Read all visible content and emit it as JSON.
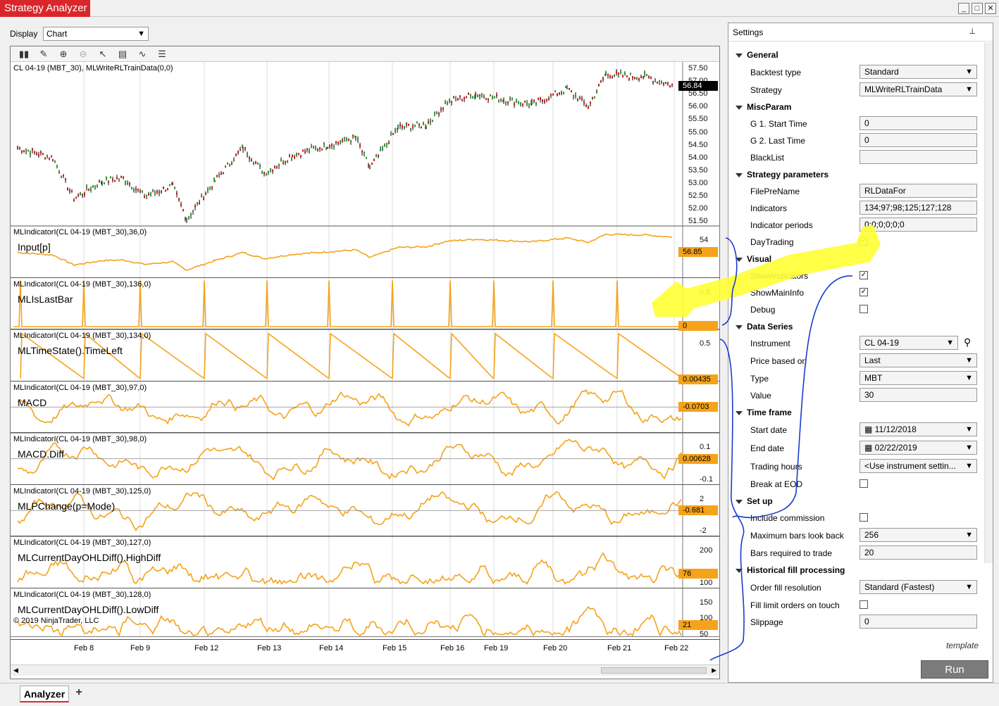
{
  "window": {
    "title": "Strategy Analyzer",
    "minimize": "_",
    "maximize": "□",
    "close": "✕"
  },
  "display": {
    "label": "Display",
    "value": "Chart"
  },
  "chart": {
    "main_title": "CL 04-19 (MBT_30), MLWriteRLTrainData(0,0)",
    "price_ticks": [
      "57.50",
      "57.00",
      "56.50",
      "56.00",
      "55.50",
      "55.00",
      "54.50",
      "54.00",
      "53.50",
      "53.00",
      "52.50",
      "52.00",
      "51.50"
    ],
    "last_price": "56.84",
    "copyright": "© 2019 NinjaTrader, LLC",
    "x_ticks": [
      "Feb 8",
      "Feb 9",
      "Feb 12",
      "Feb 13",
      "Feb 14",
      "Feb 15",
      "Feb 16",
      "Feb 19",
      "Feb 20",
      "Feb 21",
      "Feb 22"
    ],
    "indicators": [
      {
        "title": "MLIndicatorI(CL 04-19 (MBT_30),36,0)",
        "label": "Input[p]",
        "ticks": [
          "54"
        ],
        "value": "56.85"
      },
      {
        "title": "MLIndicatorI(CL 04-19 (MBT_30),136,0)",
        "label": "MLIsLastBar",
        "ticks": [
          "0.5"
        ],
        "value": "0"
      },
      {
        "title": "MLIndicatorI(CL 04-19 (MBT_30),134,0)",
        "label": "MLTimeState().TimeLeft",
        "ticks": [
          "0.5"
        ],
        "value": "0.00435"
      },
      {
        "title": "MLIndicatorI(CL 04-19 (MBT_30),97,0)",
        "label": "MACD",
        "ticks": [],
        "value": "-0.0703"
      },
      {
        "title": "MLIndicatorI(CL 04-19 (MBT_30),98,0)",
        "label": "MACD.Diff",
        "ticks": [
          "0.1",
          "-0.1"
        ],
        "value": "0.00628"
      },
      {
        "title": "MLIndicatorI(CL 04-19 (MBT_30),125,0)",
        "label": "MLPChange(p=Mode)",
        "ticks": [
          "2",
          "-2"
        ],
        "value": "-0.681"
      },
      {
        "title": "MLIndicatorI(CL 04-19 (MBT_30),127,0)",
        "label": "MLCurrentDayOHLDiff().HighDiff",
        "ticks": [
          "200",
          "100"
        ],
        "value": "76"
      },
      {
        "title": "MLIndicatorI(CL 04-19 (MBT_30),128,0)",
        "label": "MLCurrentDayOHLDiff().LowDiff",
        "ticks": [
          "150",
          "100",
          "50"
        ],
        "value": "21"
      }
    ]
  },
  "settings": {
    "header": "Settings",
    "pin": "📌",
    "groups": {
      "general": "General",
      "miscparam": "MiscParam",
      "strategy_params": "Strategy parameters",
      "visual": "Visual",
      "data_series": "Data Series",
      "time_frame": "Time frame",
      "setup": "Set up",
      "hist_fill": "Historical fill processing"
    },
    "rows": {
      "backtest_type": {
        "label": "Backtest type",
        "value": "Standard"
      },
      "strategy": {
        "label": "Strategy",
        "value": "MLWriteRLTrainData"
      },
      "start_time": {
        "label": "G 1. Start Time",
        "value": "0"
      },
      "last_time": {
        "label": "G 2. Last Time",
        "value": "0"
      },
      "blacklist": {
        "label": "BlackList",
        "value": ""
      },
      "file_pre_name": {
        "label": "FilePreName",
        "value": "RLDataFor"
      },
      "indicators": {
        "label": "Indicators",
        "value": "134;97;98;125;127;128"
      },
      "indicator_periods": {
        "label": "Indicator periods",
        "value": "0;0;0;0;0;0"
      },
      "day_trading": {
        "label": "DayTrading",
        "checked": "✓"
      },
      "show_indicators": {
        "label": "ShowIndicators",
        "checked": "✓"
      },
      "show_main_info": {
        "label": "ShowMainInfo",
        "checked": "✓"
      },
      "debug": {
        "label": "Debug",
        "checked": ""
      },
      "instrument": {
        "label": "Instrument",
        "value": "CL 04-19"
      },
      "price_based_on": {
        "label": "Price based on",
        "value": "Last"
      },
      "type": {
        "label": "Type",
        "value": "MBT"
      },
      "value": {
        "label": "Value",
        "value": "30"
      },
      "start_date": {
        "label": "Start date",
        "value": "11/12/2018"
      },
      "end_date": {
        "label": "End date",
        "value": "02/22/2019"
      },
      "trading_hours": {
        "label": "Trading hours",
        "value": "<Use instrument settin..."
      },
      "break_at_eod": {
        "label": "Break at EOD",
        "checked": ""
      },
      "include_commission": {
        "label": "Include commission",
        "checked": ""
      },
      "max_bars_back": {
        "label": "Maximum bars look back",
        "value": "256"
      },
      "bars_required": {
        "label": "Bars required to trade",
        "value": "20"
      },
      "order_fill_res": {
        "label": "Order fill resolution",
        "value": "Standard (Fastest)"
      },
      "fill_limit": {
        "label": "Fill limit orders on touch",
        "checked": ""
      },
      "slippage": {
        "label": "Slippage",
        "value": "0"
      }
    },
    "template": "template",
    "run": "Run"
  },
  "tabs": {
    "analyzer": "Analyzer",
    "add": "+"
  },
  "colors": {
    "accent": "#d9262a",
    "series": "#f5a31a",
    "annotation_yellow": "#ffff33",
    "annotation_blue": "#1a3ccf"
  }
}
